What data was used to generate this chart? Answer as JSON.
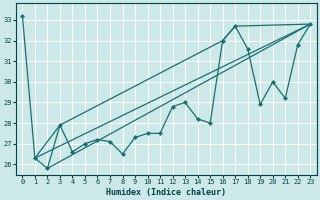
{
  "xlabel": "Humidex (Indice chaleur)",
  "bg_color": "#cce8e8",
  "grid_color": "#ffffff",
  "line_color": "#1a7070",
  "xlim": [
    -0.5,
    23.5
  ],
  "ylim": [
    25.5,
    33.8
  ],
  "yticks": [
    26,
    27,
    28,
    29,
    30,
    31,
    32,
    33
  ],
  "xticks": [
    0,
    1,
    2,
    3,
    4,
    5,
    6,
    7,
    8,
    9,
    10,
    11,
    12,
    13,
    14,
    15,
    16,
    17,
    18,
    19,
    20,
    21,
    22,
    23
  ],
  "series_main": {
    "x": [
      0,
      1,
      2,
      3,
      4,
      5,
      6,
      7,
      8,
      9,
      10,
      11,
      12,
      13,
      14,
      15,
      16,
      17,
      18,
      19,
      20,
      21,
      22,
      23
    ],
    "y": [
      33.2,
      26.3,
      25.8,
      27.9,
      26.6,
      27.0,
      27.2,
      27.1,
      26.5,
      27.3,
      27.5,
      27.5,
      28.8,
      29.0,
      28.2,
      28.0,
      32.0,
      32.7,
      31.6,
      28.9,
      30.0,
      29.2,
      31.8,
      32.8
    ]
  },
  "series_upper": {
    "x": [
      1,
      3,
      16,
      17,
      23
    ],
    "y": [
      26.3,
      27.9,
      32.0,
      32.7,
      32.8
    ]
  },
  "series_lower": {
    "x": [
      2,
      23
    ],
    "y": [
      25.8,
      32.8
    ]
  },
  "series_extra": {
    "x": [
      1,
      23
    ],
    "y": [
      26.3,
      32.8
    ]
  },
  "marker": "D",
  "marker_size": 2.0,
  "line_width": 0.9,
  "tick_fontsize": 5.0,
  "xlabel_fontsize": 6.0
}
